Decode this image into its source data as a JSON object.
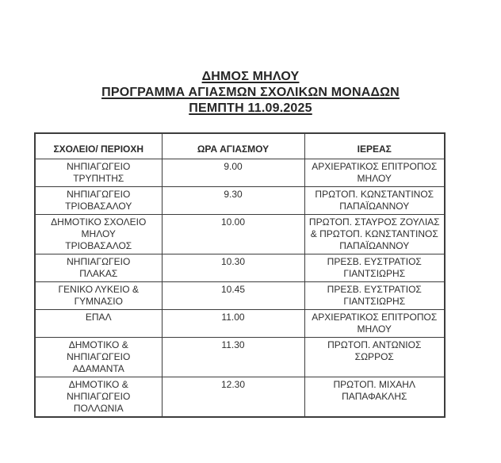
{
  "document": {
    "title": {
      "line1": "ΔΗΜΟΣ ΜΗΛΟΥ",
      "line2": "ΠΡΟΓΡΑΜΜΑ ΑΓΙΑΣΜΩΝ ΣΧΟΛΙΚΩΝ ΜΟΝΑΔΩΝ",
      "line3": "ΠΕΜΠΤΗ 11.09.2025"
    },
    "table": {
      "columns": [
        "ΣΧΟΛΕΙΟ/ ΠΕΡΙΟΧΗ",
        "ΩΡΑ ΑΓΙΑΣΜΟΥ",
        "ΙΕΡΕΑΣ"
      ],
      "rows": [
        {
          "school": [
            "ΝΗΠΙΑΓΩΓΕΙΟ",
            "ΤΡΥΠΗΤΗΣ"
          ],
          "time": "9.00",
          "priest": [
            "ΑΡΧΙΕΡΑΤΙΚΟΣ ΕΠΙΤΡΟΠΟΣ",
            "ΜΗΛΟΥ"
          ]
        },
        {
          "school": [
            "ΝΗΠΙΑΓΩΓΕΙΟ",
            "ΤΡΙΟΒΑΣΑΛΟΥ"
          ],
          "time": "9.30",
          "priest": [
            "ΠΡΩΤΟΠ. ΚΩΝΣΤΑΝΤΙΝΟΣ",
            "ΠΑΠΑΪΩΑΝΝΟΥ"
          ]
        },
        {
          "school": [
            "ΔΗΜΟΤΙΚΟ ΣΧΟΛΕΙΟ",
            "ΜΗΛΟΥ",
            "ΤΡΙΟΒΑΣΑΛΟΣ"
          ],
          "time": "10.00",
          "priest": [
            "ΠΡΩΤΟΠ. ΣΤΑΥΡΟΣ ΖΟΥΛΙΑΣ",
            "& ΠΡΩΤΟΠ. ΚΩΝΣΤΑΝΤΙΝΟΣ",
            "ΠΑΠΑΪΩΑΝΝΟΥ"
          ]
        },
        {
          "school": [
            "ΝΗΠΙΑΓΩΓΕΙΟ",
            "ΠΛΑΚΑΣ"
          ],
          "time": "10.30",
          "priest": [
            "ΠΡΕΣΒ. ΕΥΣΤΡΑΤΙΟΣ",
            "ΓΙΑΝΤΣΙΩΡΗΣ"
          ]
        },
        {
          "school": [
            "ΓΕΝΙΚΟ ΛΥΚΕΙΟ &",
            "ΓΥΜΝΑΣΙΟ"
          ],
          "time": "10.45",
          "priest": [
            "ΠΡΕΣΒ. ΕΥΣΤΡΑΤΙΟΣ",
            "ΓΙΑΝΤΣΙΩΡΗΣ"
          ]
        },
        {
          "school": [
            "ΕΠΑΛ"
          ],
          "time": "11.00",
          "priest": [
            "ΑΡΧΙΕΡΑΤΙΚΟΣ ΕΠΙΤΡΟΠΟΣ",
            "ΜΗΛΟΥ"
          ]
        },
        {
          "school": [
            "ΔΗΜΟΤΙΚΟ &",
            "ΝΗΠΙΑΓΩΓΕΙΟ",
            "ΑΔΑΜΑΝΤΑ"
          ],
          "time": "11.30",
          "priest": [
            "ΠΡΩΤΟΠ. ΑΝΤΩΝΙΟΣ ΣΩΡΡΟΣ"
          ]
        },
        {
          "school": [
            "ΔΗΜΟΤΙΚΟ &",
            "ΝΗΠΙΑΓΩΓΕΙΟ",
            "ΠΟΛΛΩΝΙΑ"
          ],
          "time": "12.30",
          "priest": [
            "ΠΡΩΤΟΠ. ΜΙΧΑΗΛ",
            "ΠΑΠΑΦΑΚΛΗΣ"
          ]
        }
      ]
    },
    "colors": {
      "text": "#2f2f2f",
      "border": "#3d3d3d",
      "background": "#ffffff"
    }
  }
}
